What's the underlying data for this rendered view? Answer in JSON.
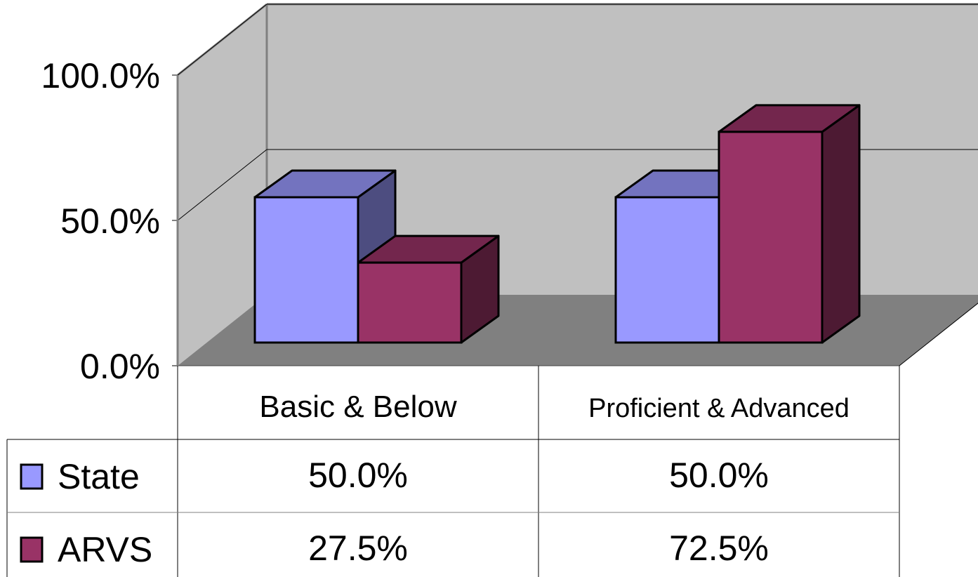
{
  "chart_data": {
    "type": "bar",
    "title": "",
    "xlabel": "",
    "ylabel": "",
    "ylim": [
      0,
      100
    ],
    "y_ticks": [
      "0.0%",
      "50.0%",
      "100.0%"
    ],
    "y_tick_values": [
      0,
      50,
      100
    ],
    "categories": [
      "Basic & Below",
      "Proficient & Advanced"
    ],
    "series": [
      {
        "name": "State",
        "values": [
          50.0,
          50.0
        ],
        "labels": [
          "50.0%",
          "50.0%"
        ],
        "color": "#9999FF"
      },
      {
        "name": "ARVS",
        "values": [
          27.5,
          72.5
        ],
        "labels": [
          "27.5%",
          "72.5%"
        ],
        "color": "#993366"
      }
    ],
    "style": "3d-clustered-column",
    "data_table": true,
    "grid": true,
    "wall_color": "#C0C0C0",
    "floor_color": "#808080"
  }
}
